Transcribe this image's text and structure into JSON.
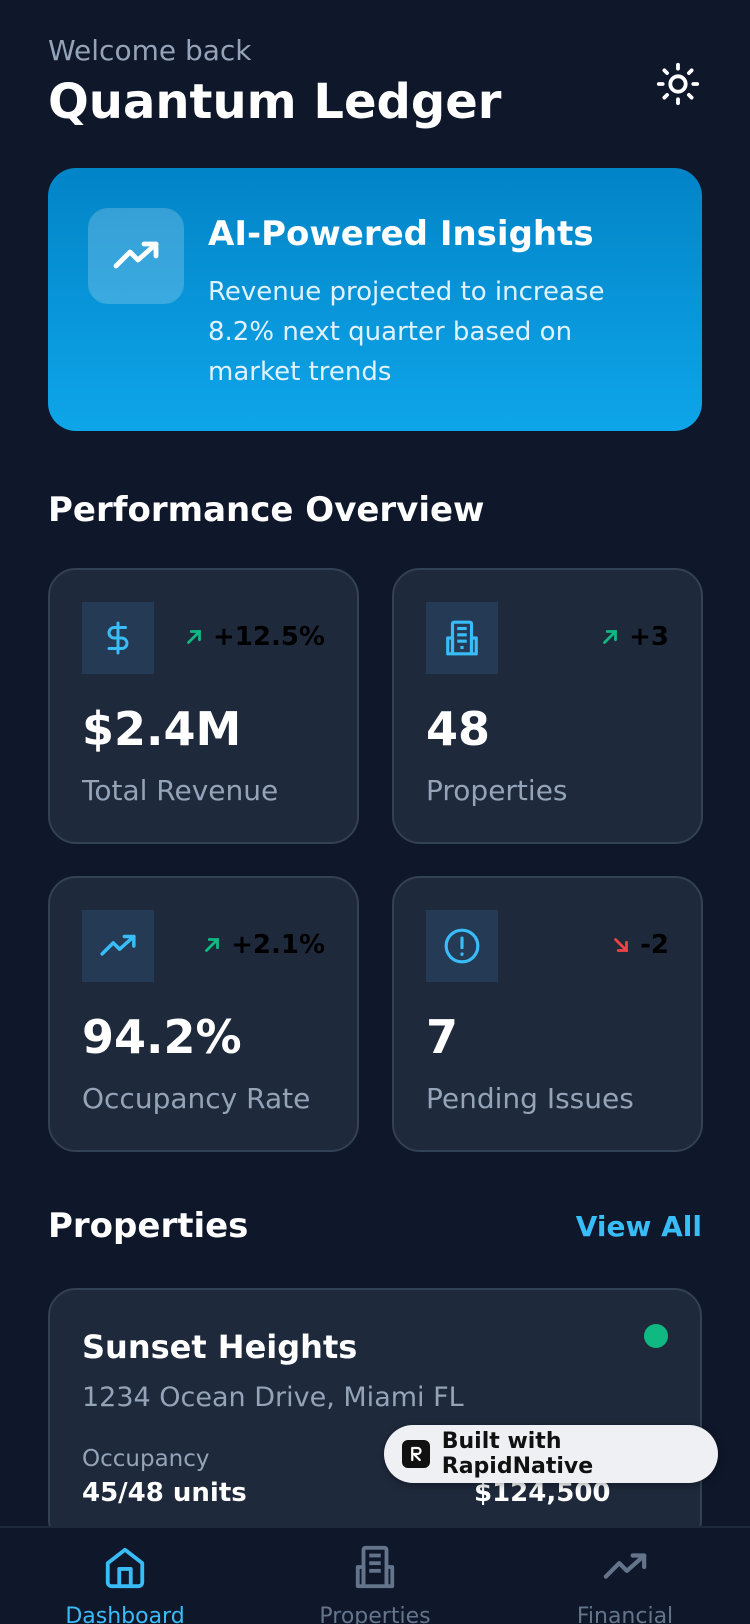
{
  "header": {
    "welcome": "Welcome back",
    "title": "Quantum Ledger",
    "theme_icon": "sun-icon"
  },
  "insight": {
    "icon": "trending-up-icon",
    "title": "AI-Powered Insights",
    "text": "Revenue projected to increase 8.2% next quarter based on market trends"
  },
  "performance": {
    "title": "Performance Overview",
    "stats": [
      {
        "icon": "dollar-icon",
        "trend": "+12.5%",
        "direction": "up",
        "value": "$2.4M",
        "label": "Total Revenue"
      },
      {
        "icon": "building-icon",
        "trend": "+3",
        "direction": "up",
        "value": "48",
        "label": "Properties"
      },
      {
        "icon": "trending-up-icon",
        "trend": "+2.1%",
        "direction": "up",
        "value": "94.2%",
        "label": "Occupancy Rate"
      },
      {
        "icon": "alert-circle-icon",
        "trend": "-2",
        "direction": "down",
        "value": "7",
        "label": "Pending Issues"
      }
    ]
  },
  "properties": {
    "title": "Properties",
    "view_all": "View All",
    "items": [
      {
        "name": "Sunset Heights",
        "address": "1234 Ocean Drive, Miami FL",
        "occupancy_label": "Occupancy",
        "occupancy_value": "45/48 units",
        "revenue_value": "$124,500",
        "status_color": "#10b981"
      }
    ]
  },
  "badge": {
    "text": "Built with RapidNative"
  },
  "nav": {
    "items": [
      {
        "label": "Dashboard",
        "icon": "home-icon",
        "active": true
      },
      {
        "label": "Properties",
        "icon": "building-icon",
        "active": false
      },
      {
        "label": "Financial",
        "icon": "trending-up-icon",
        "active": false
      }
    ]
  },
  "colors": {
    "background": "#0f172a",
    "card": "#1e293b",
    "accent": "#38bdf8",
    "positive": "#10b981",
    "negative": "#ef4444"
  }
}
